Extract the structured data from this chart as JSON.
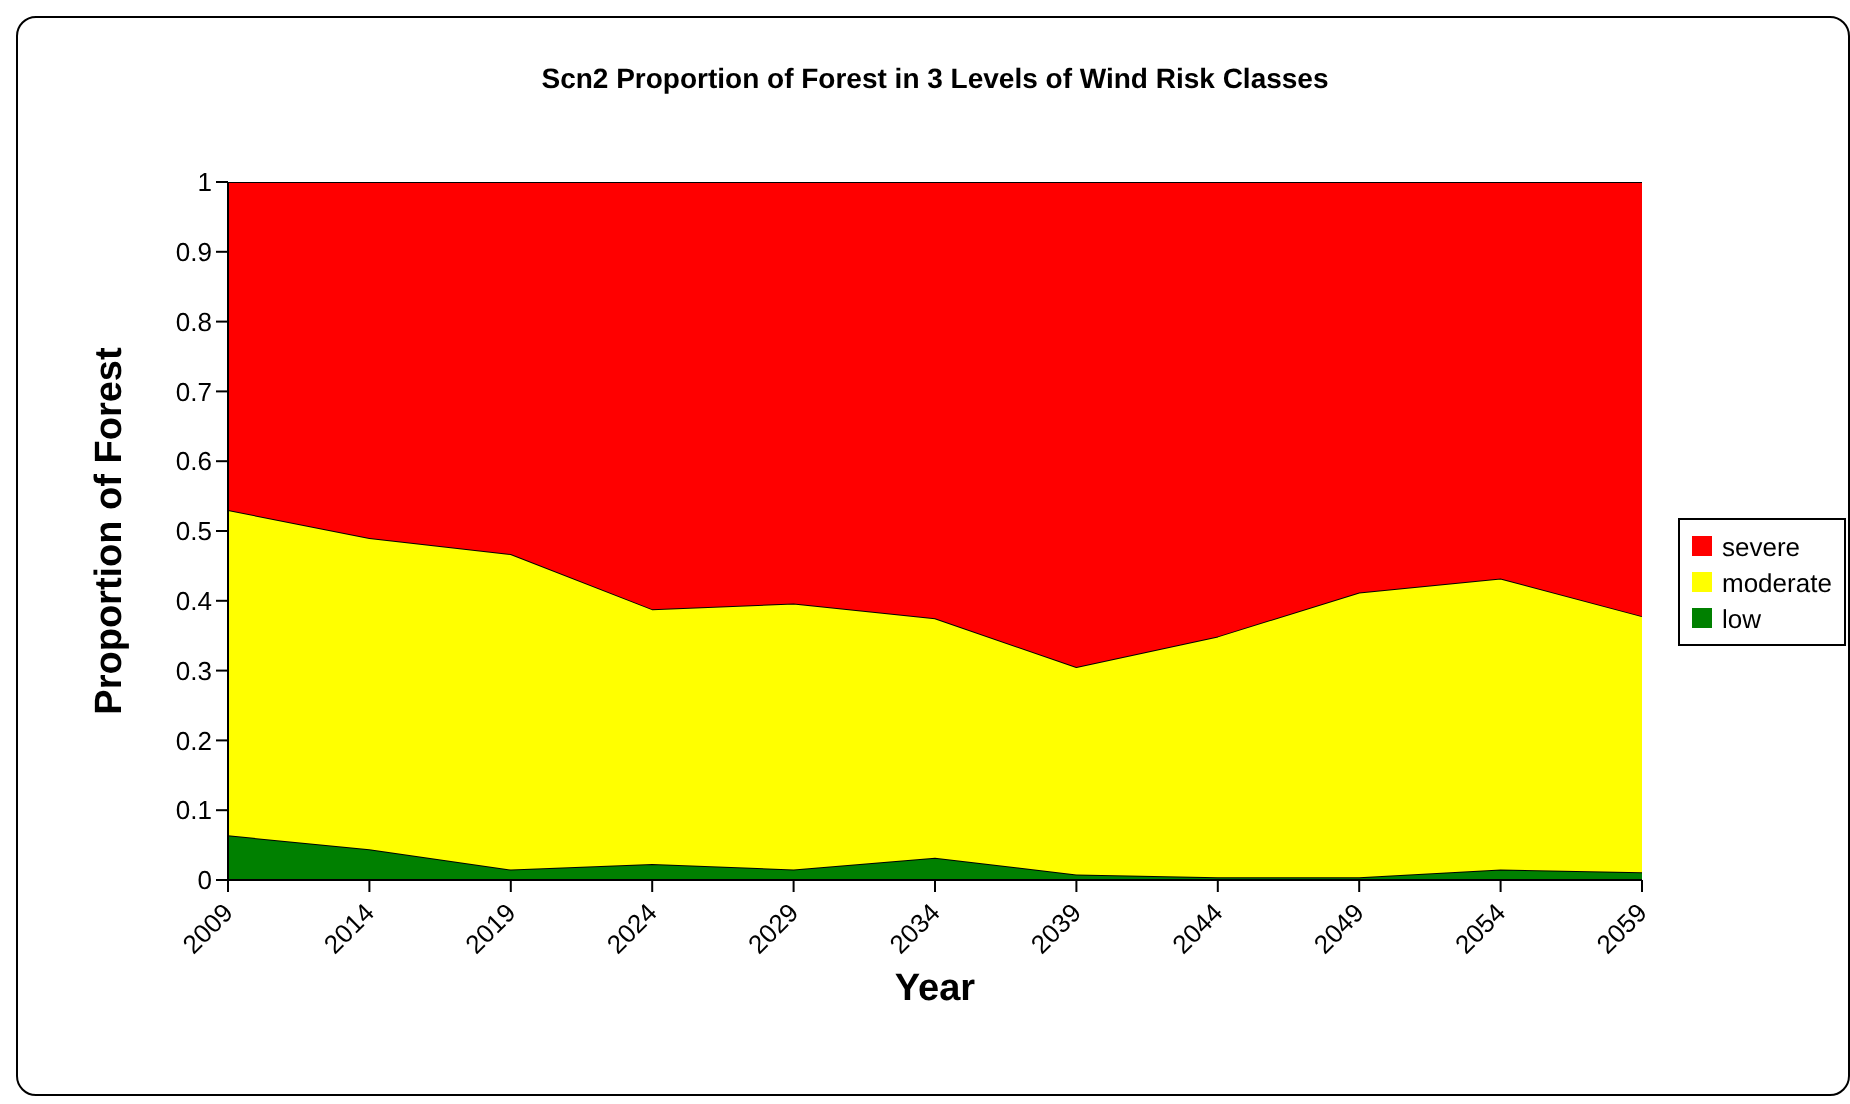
{
  "chart_data": {
    "type": "area",
    "title": "Scn2 Proportion of Forest in 3 Levels of Wind Risk Classes",
    "xlabel": "Year",
    "ylabel": "Proportion of Forest",
    "stacked": true,
    "x": [
      2009,
      2014,
      2019,
      2024,
      2029,
      2034,
      2039,
      2044,
      2049,
      2054,
      2059
    ],
    "series": [
      {
        "name": "low",
        "color": "#008000",
        "values": [
          0.064,
          0.044,
          0.015,
          0.023,
          0.015,
          0.032,
          0.008,
          0.004,
          0.004,
          0.015,
          0.011
        ]
      },
      {
        "name": "moderate",
        "color": "#ffff00",
        "values": [
          0.466,
          0.446,
          0.452,
          0.365,
          0.381,
          0.343,
          0.297,
          0.345,
          0.408,
          0.417,
          0.367
        ]
      },
      {
        "name": "severe",
        "color": "#ff0000",
        "values": [
          0.47,
          0.51,
          0.533,
          0.612,
          0.604,
          0.625,
          0.695,
          0.651,
          0.588,
          0.568,
          0.622
        ]
      }
    ],
    "xlim": [
      2009,
      2059
    ],
    "xticks": [
      2009,
      2014,
      2019,
      2024,
      2029,
      2034,
      2039,
      2044,
      2049,
      2054,
      2059
    ],
    "ylim": [
      0,
      1
    ],
    "yticks": [
      0,
      0.1,
      0.2,
      0.3,
      0.4,
      0.5,
      0.6,
      0.7,
      0.8,
      0.9,
      1
    ],
    "grid": false,
    "legend": "right"
  }
}
